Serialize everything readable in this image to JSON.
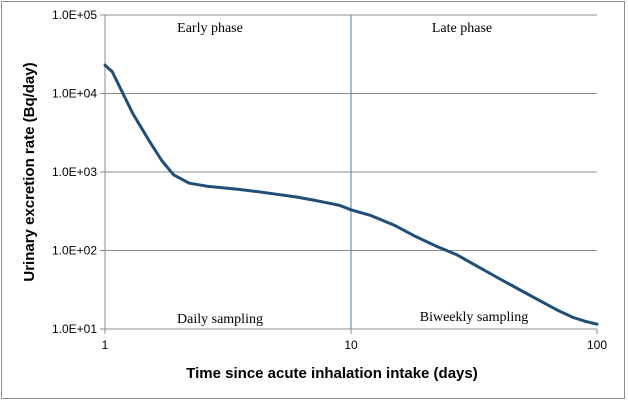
{
  "chart_data": {
    "type": "line",
    "xlabel": "Time since acute inhalation intake (days)",
    "ylabel": "Urinary excretion rate (Bq/day)",
    "x_scale": "log",
    "y_scale": "log",
    "xlim": [
      1,
      100
    ],
    "ylim": [
      10,
      100000
    ],
    "x_ticks": [
      1,
      10,
      100
    ],
    "x_tick_labels": [
      "1",
      "10",
      "100"
    ],
    "y_ticks": [
      10,
      100,
      1000,
      10000,
      100000
    ],
    "y_tick_labels": [
      "1.0E+01",
      "1.0E+02",
      "1.0E+03",
      "1.0E+04",
      "1.0E+05"
    ],
    "grid": "horizontal",
    "reference_line_x": 10,
    "annotations": [
      "Early phase",
      "Late phase",
      "Daily sampling",
      "Biweekly sampling"
    ],
    "series": [
      {
        "color": "#1f4e79",
        "x": [
          1,
          1.07,
          1.15,
          1.3,
          1.5,
          1.7,
          1.9,
          2.2,
          2.6,
          3,
          3.5,
          4.2,
          5,
          6,
          7,
          8,
          9,
          10,
          12,
          15,
          18,
          22,
          27,
          32,
          40,
          50,
          60,
          70,
          80,
          90,
          100
        ],
        "y": [
          23000,
          19000,
          12000,
          5500,
          2600,
          1400,
          920,
          720,
          660,
          630,
          600,
          560,
          520,
          480,
          440,
          405,
          375,
          330,
          280,
          210,
          155,
          115,
          88,
          65,
          44,
          30,
          22,
          17,
          14,
          12.5,
          11.5
        ]
      }
    ]
  }
}
